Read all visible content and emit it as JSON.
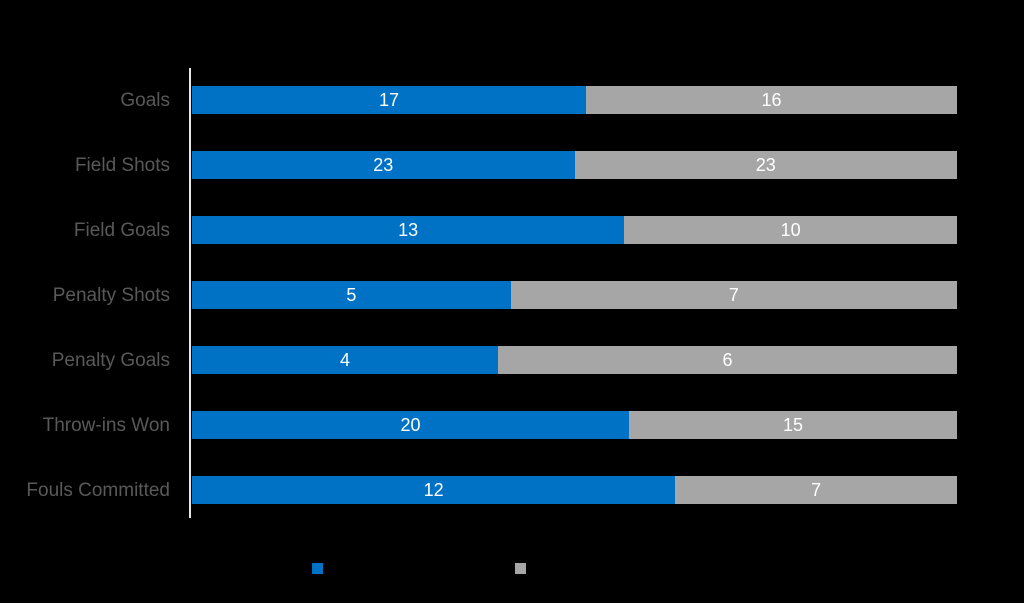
{
  "background_color": "#000000",
  "chart_data": {
    "type": "bar",
    "orientation": "horizontal",
    "stacked": true,
    "normalized_to_full_width": true,
    "title": "",
    "xlabel": "",
    "ylabel": "",
    "grid": false,
    "legend_position": "bottom",
    "legend_text_visible": false,
    "categories": [
      "Goals",
      "Field Shots",
      "Field Goals",
      "Penalty Shots",
      "Penalty Goals",
      "Throw-ins Won",
      "Fouls Committed"
    ],
    "series": [
      {
        "name": "",
        "color": "#0072c6",
        "values": [
          17,
          23,
          13,
          5,
          4,
          20,
          12
        ]
      },
      {
        "name": "",
        "color": "#a6a6a6",
        "values": [
          16,
          23,
          10,
          7,
          6,
          15,
          7
        ]
      }
    ],
    "value_labels_position": "inside-center",
    "value_label_color": "#ffffff",
    "category_label_color": "#595959",
    "axis_line_color": "#e6e6e6"
  }
}
